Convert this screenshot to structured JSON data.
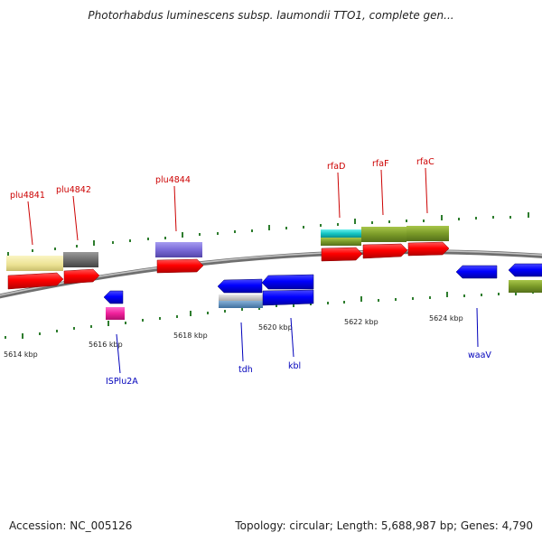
{
  "header": {
    "title": "Photorhabdus luminescens subsp. laumondii TTO1, complete gen..."
  },
  "footer": {
    "accession": "Accession: NC_005126",
    "summary": "Topology: circular; Length: 5,688,987 bp; Genes: 4,790"
  },
  "map": {
    "tick_labels": [
      "5614 kbp",
      "5616 kbp",
      "5618 kbp",
      "5620 kbp",
      "5622 kbp",
      "5624 kbp"
    ],
    "forward_gene_labels": [
      "plu4841",
      "plu4842",
      "plu4844",
      "rfaD",
      "rfaF",
      "rfaC"
    ],
    "reverse_gene_labels": [
      "ISPlu2A",
      "tdh",
      "kbl",
      "waaV"
    ]
  },
  "colors": {
    "forward_label": "#cc0000",
    "reverse_label": "#0000bb",
    "forward_cds": "#ff0000",
    "reverse_cds": "#0000ff",
    "tick": "#2e7d2e",
    "backbone": "#8a8a8a"
  }
}
